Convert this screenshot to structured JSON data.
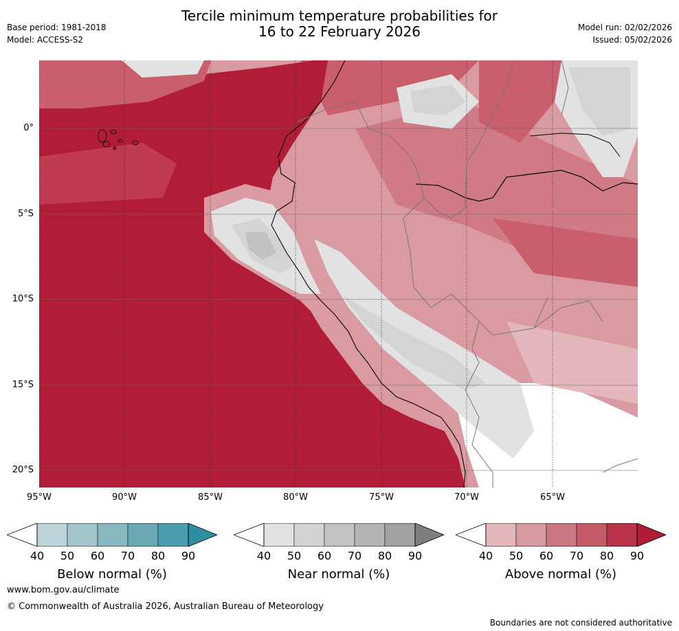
{
  "header": {
    "base_period": "Base period: 1981-2018",
    "model": "Model: ACCESS-S2",
    "title_line1": "Tercile minimum temperature probabilities for",
    "title_line2": "16 to 22 February 2026",
    "model_run": "Model run: 02/02/2026",
    "issued": "Issued: 05/02/2026"
  },
  "map": {
    "lat_labels": [
      "0°",
      "5°S",
      "10°S",
      "15°S",
      "20°S"
    ],
    "lon_labels": [
      "95°W",
      "90°W",
      "85°W",
      "80°W",
      "75°W",
      "70°W",
      "65°W"
    ],
    "colors": {
      "ocean_90": "#b11c37",
      "above_80": "#c03a52",
      "above_70": "#c95e6c",
      "above_60": "#d07a86",
      "above_50": "#da9aa2",
      "above_40": "#e3b7bc",
      "near_40": "#e2e2e2",
      "near_50": "#d4d4d4",
      "near_60": "#c2c2c2",
      "near_70": "#ababab",
      "blank": "#ffffff"
    }
  },
  "legends": [
    {
      "title": "Below normal (%)",
      "ticks": [
        "40",
        "50",
        "60",
        "70",
        "80",
        "90"
      ],
      "colors": [
        "#bcd4d9",
        "#a2c6cc",
        "#88b7c0",
        "#6aa9b4",
        "#4a9eaf",
        "#2f8ea2"
      ]
    },
    {
      "title": "Near normal (%)",
      "ticks": [
        "40",
        "50",
        "60",
        "70",
        "80",
        "90"
      ],
      "colors": [
        "#e2e2e2",
        "#d3d3d3",
        "#c3c3c3",
        "#b3b3b3",
        "#a1a1a1",
        "#7e7e7e"
      ]
    },
    {
      "title": "Above normal (%)",
      "ticks": [
        "40",
        "50",
        "60",
        "70",
        "80",
        "90"
      ],
      "colors": [
        "#e3b7bc",
        "#d69aa2",
        "#cb7784",
        "#c35b69",
        "#b8324a",
        "#b01c36"
      ]
    }
  ],
  "footer": {
    "website": "www.bom.gov.au/climate",
    "copyright": "© Commonwealth of Australia 2026, Australian Bureau of Meteorology",
    "disclaimer": "Boundaries are not considered authoritative"
  }
}
